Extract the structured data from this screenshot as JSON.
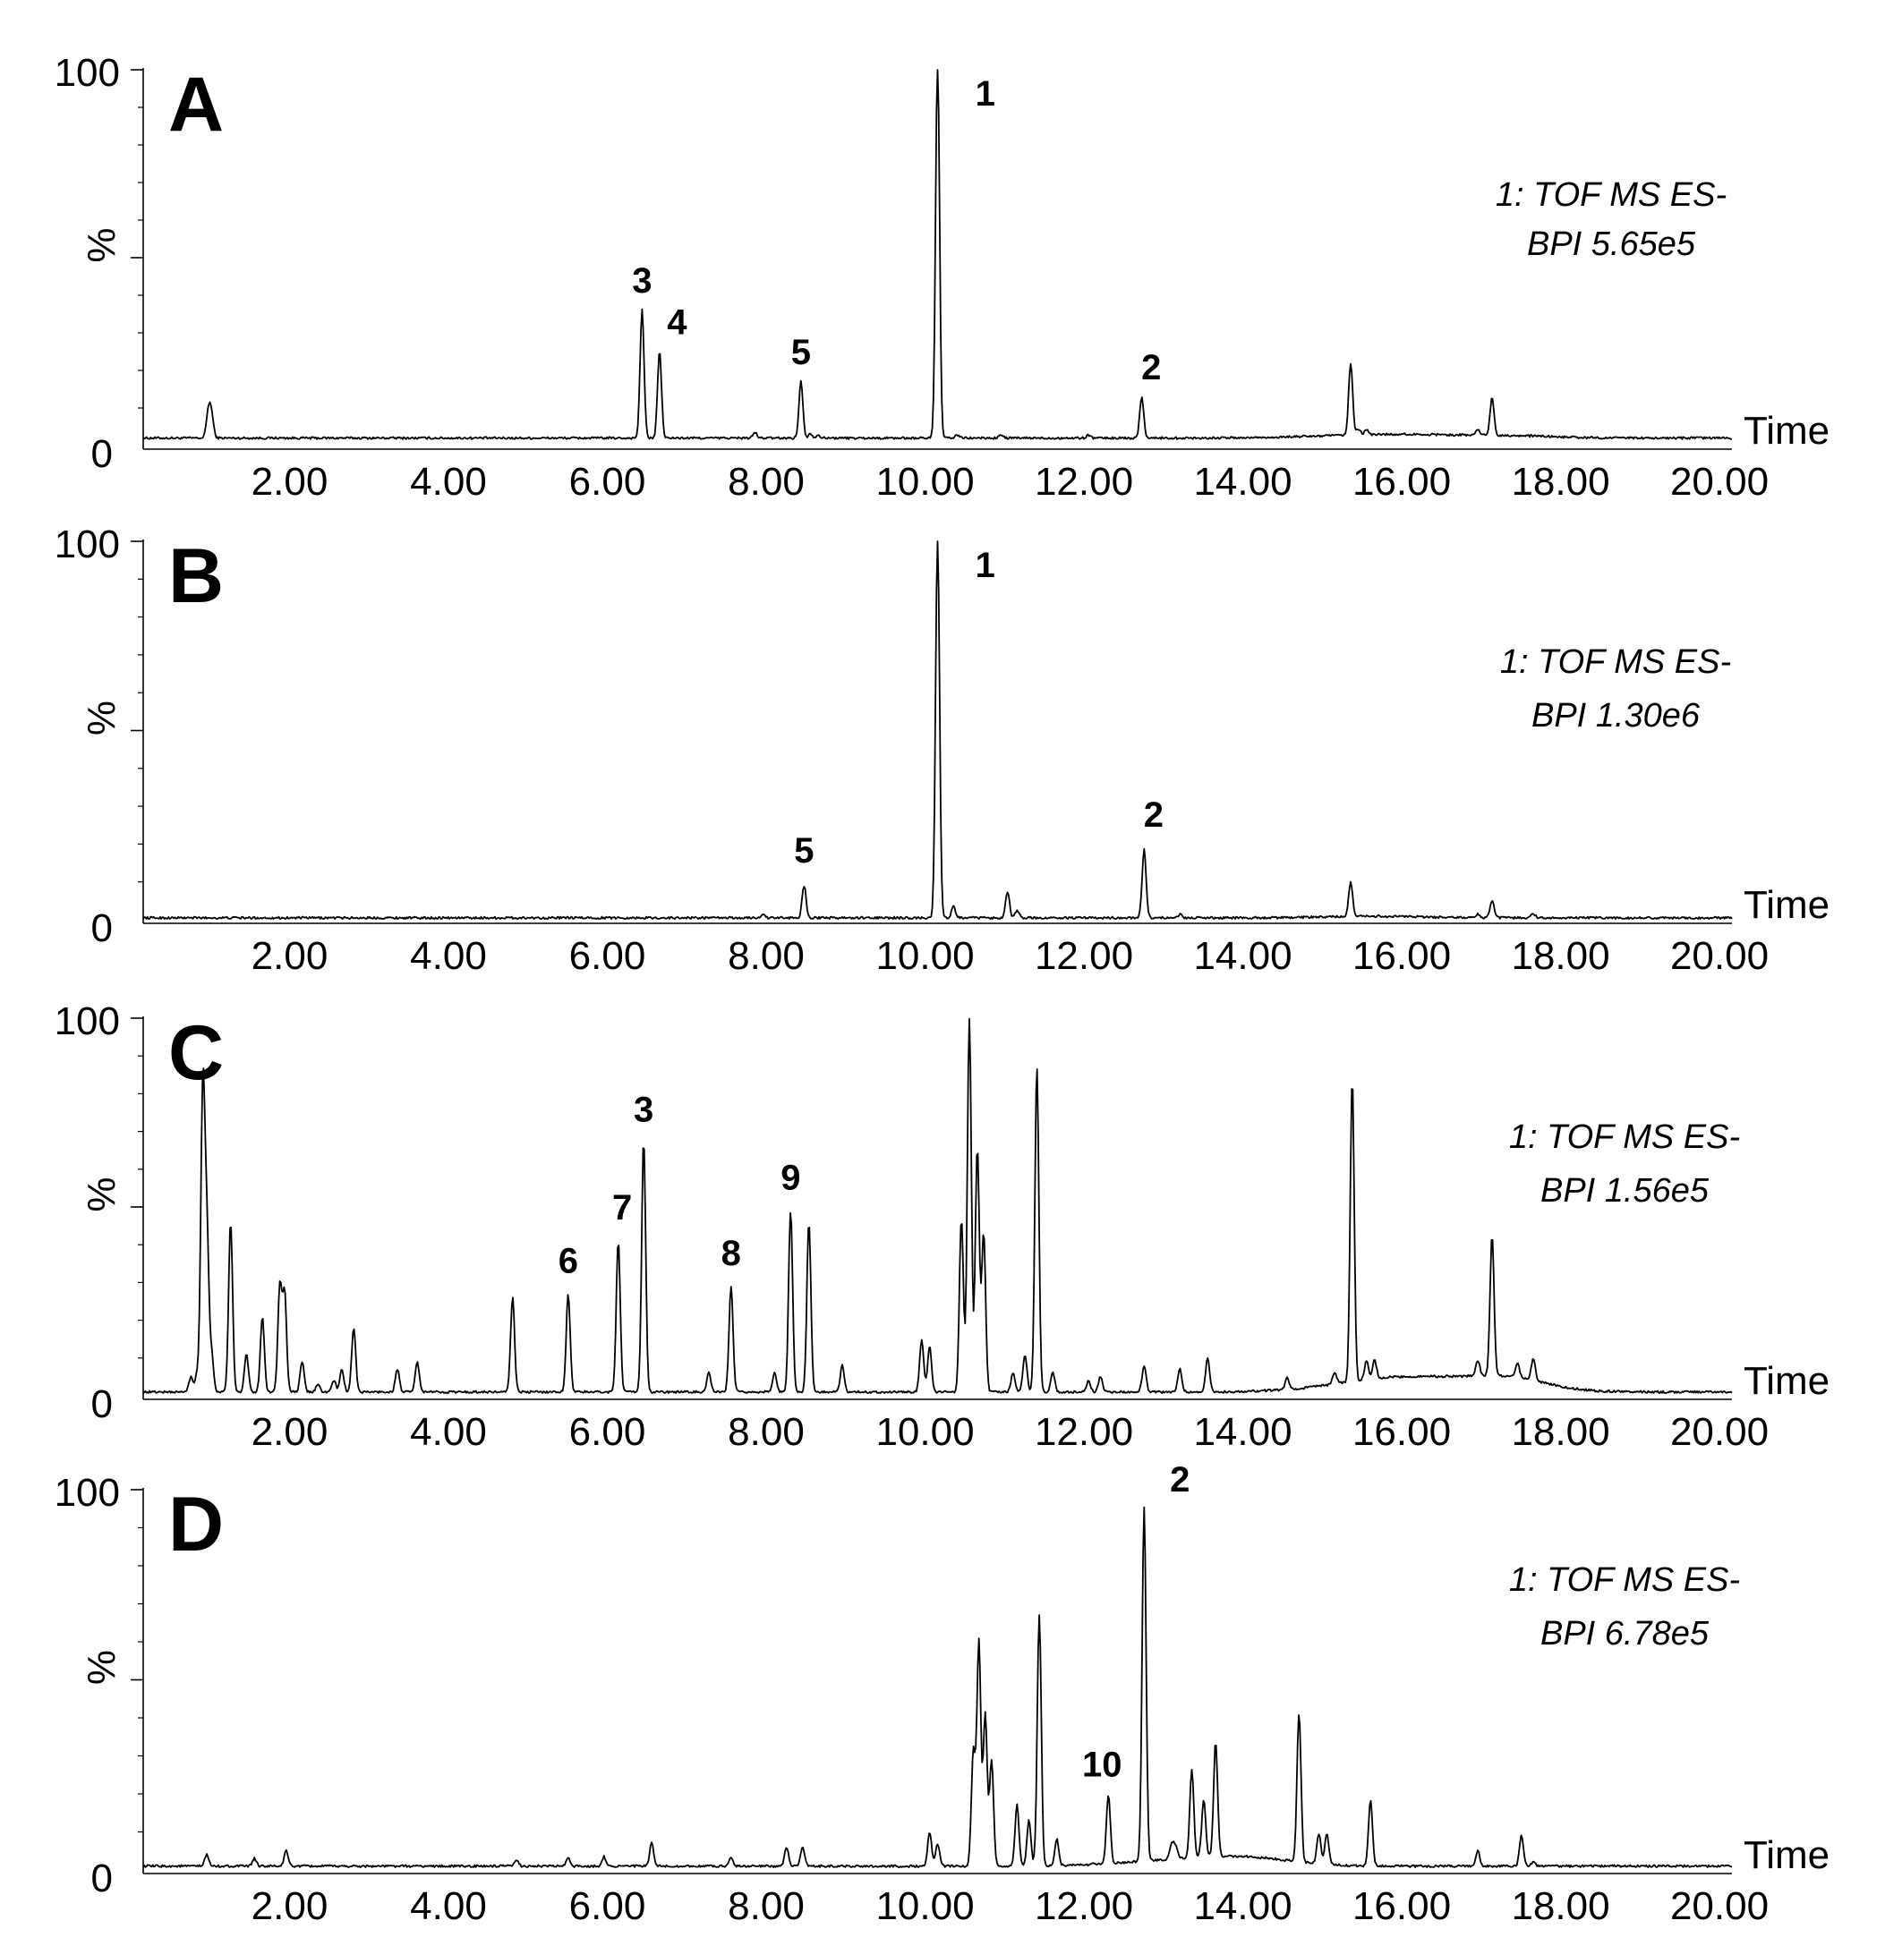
{
  "figure": {
    "time_label": "Time"
  },
  "chart_data": [
    {
      "type": "line",
      "panel": "A",
      "xlim": [
        0,
        20
      ],
      "ylim": [
        0,
        100
      ],
      "xticks": [
        "2.00",
        "4.00",
        "6.00",
        "8.00",
        "10.00",
        "12.00",
        "14.00",
        "16.00",
        "18.00",
        "20.00"
      ],
      "yticks": [
        "100",
        "%",
        "0"
      ],
      "xlabel": "Time",
      "ylabel": "%",
      "annotation": [
        "1: TOF MS ES-",
        "BPI 5.65e5"
      ],
      "baseline": 2,
      "peaks": [
        [
          0.82,
          7
        ],
        [
          0.86,
          6
        ],
        [
          6.28,
          34
        ],
        [
          6.5,
          23
        ],
        [
          7.7,
          1.5
        ],
        [
          8.28,
          15
        ],
        [
          8.4,
          1.2
        ],
        [
          8.5,
          0.8
        ],
        [
          10.0,
          100
        ],
        [
          10.25,
          0.8
        ],
        [
          10.8,
          0.8
        ],
        [
          11.9,
          0.8
        ],
        [
          12.57,
          11
        ],
        [
          15.2,
          19
        ],
        [
          15.3,
          1.5
        ],
        [
          15.4,
          1.2
        ],
        [
          16.8,
          1.5
        ],
        [
          16.98,
          10
        ]
      ],
      "humps": [
        [
          15.8,
          1.0,
          0.9
        ],
        [
          17.3,
          0.4,
          0.5
        ]
      ],
      "labels": [
        {
          "text": "1",
          "x": 10.0,
          "y": 100,
          "dx": 0.6
        },
        {
          "text": "3",
          "x": 6.28,
          "y": 34,
          "dx": 0
        },
        {
          "text": "4",
          "x": 6.5,
          "y": 23,
          "dx": 0.22
        },
        {
          "text": "5",
          "x": 8.28,
          "y": 15,
          "dx": 0
        },
        {
          "text": "2",
          "x": 12.57,
          "y": 11,
          "dx": 0.12
        }
      ]
    },
    {
      "type": "line",
      "panel": "B",
      "xlim": [
        0,
        20
      ],
      "ylim": [
        0,
        100
      ],
      "xticks": [
        "2.00",
        "4.00",
        "6.00",
        "8.00",
        "10.00",
        "12.00",
        "14.00",
        "16.00",
        "18.00",
        "20.00"
      ],
      "yticks": [
        "100",
        "%",
        "0"
      ],
      "xlabel": "Time",
      "ylabel": "%",
      "annotation": [
        "1: TOF MS ES-",
        "BPI 1.30e6"
      ],
      "baseline": 0.5,
      "peaks": [
        [
          7.8,
          1
        ],
        [
          8.32,
          8.5
        ],
        [
          10.0,
          100
        ],
        [
          10.2,
          3
        ],
        [
          10.88,
          7
        ],
        [
          11.0,
          2
        ],
        [
          12.6,
          18
        ],
        [
          13.05,
          1
        ],
        [
          15.2,
          9
        ],
        [
          16.8,
          1
        ],
        [
          16.98,
          4.5
        ],
        [
          17.5,
          1
        ]
      ],
      "humps": [
        [
          15.5,
          0.4,
          0.6
        ]
      ],
      "labels": [
        {
          "text": "1",
          "x": 10.0,
          "y": 100,
          "dx": 0.6
        },
        {
          "text": "5",
          "x": 8.32,
          "y": 8.5,
          "dx": 0
        },
        {
          "text": "2",
          "x": 12.6,
          "y": 18,
          "dx": 0.12
        }
      ]
    },
    {
      "type": "line",
      "panel": "C",
      "xlim": [
        0,
        20
      ],
      "ylim": [
        0,
        100
      ],
      "xticks": [
        "2.00",
        "4.00",
        "6.00",
        "8.00",
        "10.00",
        "12.00",
        "14.00",
        "16.00",
        "18.00",
        "20.00"
      ],
      "yticks": [
        "100",
        "%",
        "0"
      ],
      "xlabel": "Time",
      "ylabel": "%",
      "annotation": [
        "1: TOF MS ES-",
        "BPI 1.56e5"
      ],
      "baseline": 1,
      "peaks": [
        [
          0.6,
          4
        ],
        [
          0.68,
          5
        ],
        [
          0.75,
          80
        ],
        [
          0.8,
          42
        ],
        [
          0.86,
          10
        ],
        [
          1.1,
          45
        ],
        [
          1.3,
          10
        ],
        [
          1.5,
          20
        ],
        [
          1.72,
          28
        ],
        [
          1.78,
          26
        ],
        [
          2.0,
          8
        ],
        [
          2.2,
          2
        ],
        [
          2.4,
          3
        ],
        [
          2.5,
          6
        ],
        [
          2.65,
          17
        ],
        [
          3.2,
          6
        ],
        [
          3.45,
          8
        ],
        [
          4.65,
          25
        ],
        [
          5.35,
          26
        ],
        [
          5.98,
          40
        ],
        [
          6.3,
          66
        ],
        [
          6.3,
          1
        ],
        [
          7.12,
          5
        ],
        [
          7.4,
          28
        ],
        [
          7.95,
          5
        ],
        [
          8.15,
          48
        ],
        [
          8.38,
          45
        ],
        [
          8.8,
          7
        ],
        [
          9.8,
          14
        ],
        [
          9.9,
          12
        ],
        [
          10.3,
          46
        ],
        [
          10.4,
          99
        ],
        [
          10.5,
          65
        ],
        [
          10.58,
          42
        ],
        [
          10.95,
          5
        ],
        [
          11.1,
          10
        ],
        [
          11.25,
          86
        ],
        [
          11.45,
          5
        ],
        [
          11.9,
          3
        ],
        [
          12.05,
          4
        ],
        [
          12.6,
          7
        ],
        [
          13.05,
          6
        ],
        [
          13.4,
          9
        ],
        [
          14.4,
          3
        ],
        [
          15.0,
          3
        ],
        [
          15.22,
          80
        ],
        [
          15.4,
          5
        ],
        [
          15.5,
          5
        ],
        [
          16.8,
          4
        ],
        [
          16.98,
          37
        ],
        [
          17.3,
          4
        ],
        [
          17.5,
          6
        ]
      ],
      "humps": [
        [
          15.9,
          4,
          0.8
        ],
        [
          17.2,
          3,
          0.5
        ]
      ],
      "labels": [
        {
          "text": "3",
          "x": 6.3,
          "y": 66,
          "dx": 0
        },
        {
          "text": "7",
          "x": 5.98,
          "y": 40,
          "dx": 0.05
        },
        {
          "text": "6",
          "x": 5.35,
          "y": 26,
          "dx": 0
        },
        {
          "text": "9",
          "x": 8.15,
          "y": 48,
          "dx": 0
        },
        {
          "text": "8",
          "x": 7.4,
          "y": 28,
          "dx": 0
        }
      ]
    },
    {
      "type": "line",
      "panel": "D",
      "xlim": [
        0,
        20
      ],
      "ylim": [
        0,
        100
      ],
      "xticks": [
        "2.00",
        "4.00",
        "6.00",
        "8.00",
        "10.00",
        "12.00",
        "14.00",
        "16.00",
        "18.00",
        "20.00"
      ],
      "yticks": [
        "100",
        "%",
        "0"
      ],
      "xlabel": "Time",
      "ylabel": "%",
      "annotation": [
        "1: TOF MS ES-",
        "BPI 6.78e5"
      ],
      "baseline": 1,
      "peaks": [
        [
          0.8,
          3
        ],
        [
          1.8,
          4
        ],
        [
          1.4,
          2
        ],
        [
          4.7,
          1.5
        ],
        [
          5.35,
          2
        ],
        [
          5.8,
          2.5
        ],
        [
          6.4,
          6
        ],
        [
          7.4,
          2.5
        ],
        [
          8.1,
          5
        ],
        [
          8.3,
          5
        ],
        [
          9.9,
          9
        ],
        [
          10.0,
          6
        ],
        [
          10.45,
          30
        ],
        [
          10.52,
          59
        ],
        [
          10.6,
          40
        ],
        [
          10.68,
          28
        ],
        [
          11.0,
          16
        ],
        [
          11.15,
          12
        ],
        [
          11.28,
          66
        ],
        [
          11.5,
          7
        ],
        [
          12.15,
          18
        ],
        [
          12.6,
          93
        ],
        [
          12.95,
          4
        ],
        [
          13.0,
          3
        ],
        [
          13.2,
          23
        ],
        [
          13.35,
          15
        ],
        [
          13.5,
          30
        ],
        [
          14.55,
          39
        ],
        [
          14.8,
          8
        ],
        [
          14.9,
          8
        ],
        [
          15.45,
          17
        ],
        [
          16.8,
          4
        ],
        [
          17.35,
          8
        ],
        [
          17.5,
          1
        ]
      ],
      "humps": [
        [
          13.3,
          2,
          0.8
        ],
        [
          14.0,
          1,
          0.5
        ]
      ],
      "labels": [
        {
          "text": "2",
          "x": 12.6,
          "y": 93,
          "dx": 0.45
        },
        {
          "text": "10",
          "x": 12.15,
          "y": 18,
          "dx": -0.08
        }
      ]
    }
  ]
}
